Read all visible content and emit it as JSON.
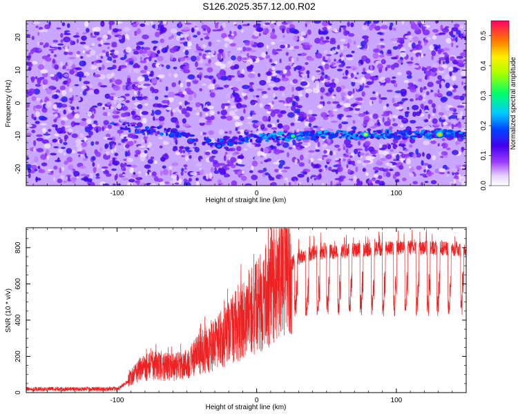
{
  "title": "S126.2025.357.12.00.R02",
  "chart_data": [
    {
      "type": "heatmap",
      "xlabel": "Height of straight line (km)",
      "ylabel": "Frequency (Hz)",
      "xlim": [
        -165,
        150
      ],
      "ylim": [
        -25,
        25
      ],
      "xticks": [
        -100,
        0,
        100
      ],
      "yticks": [
        -20,
        -10,
        0,
        10,
        20
      ],
      "colorbar": {
        "label": "Normalized spectral amplitude",
        "range": [
          0,
          0.55
        ],
        "ticks": [
          0.0,
          0.1,
          0.2,
          0.3,
          0.4,
          0.5
        ]
      },
      "signal_track": {
        "description_points": [
          [
            -100,
            -7
          ],
          [
            -60,
            -9
          ],
          [
            -30,
            -12
          ],
          [
            -10,
            -11
          ],
          [
            20,
            -10
          ],
          [
            60,
            -9.5
          ],
          [
            100,
            -9.5
          ],
          [
            150,
            -9.5
          ]
        ]
      },
      "peaks": [
        {
          "x": 26,
          "y": -10,
          "value": 0.32
        },
        {
          "x": 78,
          "y": -9.5,
          "value": 0.38
        },
        {
          "x": 131,
          "y": -9.5,
          "value": 0.45
        },
        {
          "x": -27,
          "y": -13,
          "value": 0.2
        }
      ]
    },
    {
      "type": "line",
      "xlabel": "Height of straight line (km)",
      "ylabel": "SNR (10 * v/v)",
      "xlim": [
        -165,
        150
      ],
      "ylim": [
        0,
        910
      ],
      "xticks": [
        -100,
        0,
        100
      ],
      "yticks": [
        0,
        200,
        400,
        600,
        800
      ],
      "color": "#ee2222",
      "profile": [
        [
          -165,
          20
        ],
        [
          -100,
          20
        ],
        [
          -92,
          60
        ],
        [
          -85,
          130
        ],
        [
          -75,
          150
        ],
        [
          -60,
          140
        ],
        [
          -50,
          160
        ],
        [
          -40,
          220
        ],
        [
          -30,
          260
        ],
        [
          -20,
          330
        ],
        [
          -10,
          400
        ],
        [
          0,
          470
        ],
        [
          10,
          560
        ],
        [
          20,
          650
        ],
        [
          28,
          740
        ],
        [
          40,
          770
        ],
        [
          60,
          780
        ],
        [
          80,
          790
        ],
        [
          100,
          800
        ],
        [
          120,
          800
        ],
        [
          150,
          790
        ]
      ],
      "dips": [
        27,
        35,
        43,
        50,
        58,
        66,
        74,
        82,
        90,
        98,
        106,
        114,
        122,
        129,
        137,
        146
      ]
    }
  ]
}
